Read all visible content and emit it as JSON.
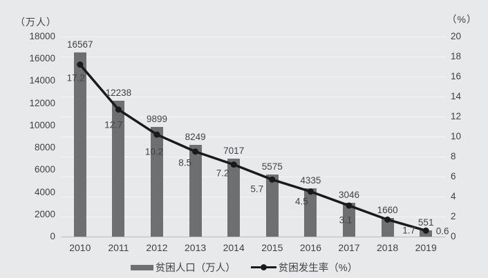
{
  "chart_data": {
    "type": "bar",
    "subtype": "combo-bar-line",
    "title": "",
    "categories": [
      "2010",
      "2011",
      "2012",
      "2013",
      "2014",
      "2015",
      "2016",
      "2017",
      "2018",
      "2019"
    ],
    "series": [
      {
        "name": "贫困人口（万人）",
        "type": "bar",
        "axis": "left",
        "values": [
          16567,
          12238,
          9899,
          8249,
          7017,
          5575,
          4335,
          3046,
          1660,
          551
        ]
      },
      {
        "name": "贫困发生率（%）",
        "type": "line",
        "axis": "right",
        "values": [
          17.2,
          12.7,
          10.2,
          8.5,
          7.2,
          5.7,
          4.5,
          3.1,
          1.7,
          0.6
        ]
      }
    ],
    "left_axis": {
      "label": "（万人）",
      "min": 0,
      "max": 18000,
      "step": 2000
    },
    "right_axis": {
      "label": "（%）",
      "min": 0,
      "max": 20,
      "step": 2
    },
    "grid": "horizontal",
    "legend_position": "bottom",
    "data_labels": true
  },
  "colors": {
    "background": "#e8e9ea",
    "bar": "#6e6f71",
    "line": "#1a1a1a",
    "text": "#3f4042",
    "grid": "#f4f5f6",
    "baseline": "#b9babc"
  }
}
